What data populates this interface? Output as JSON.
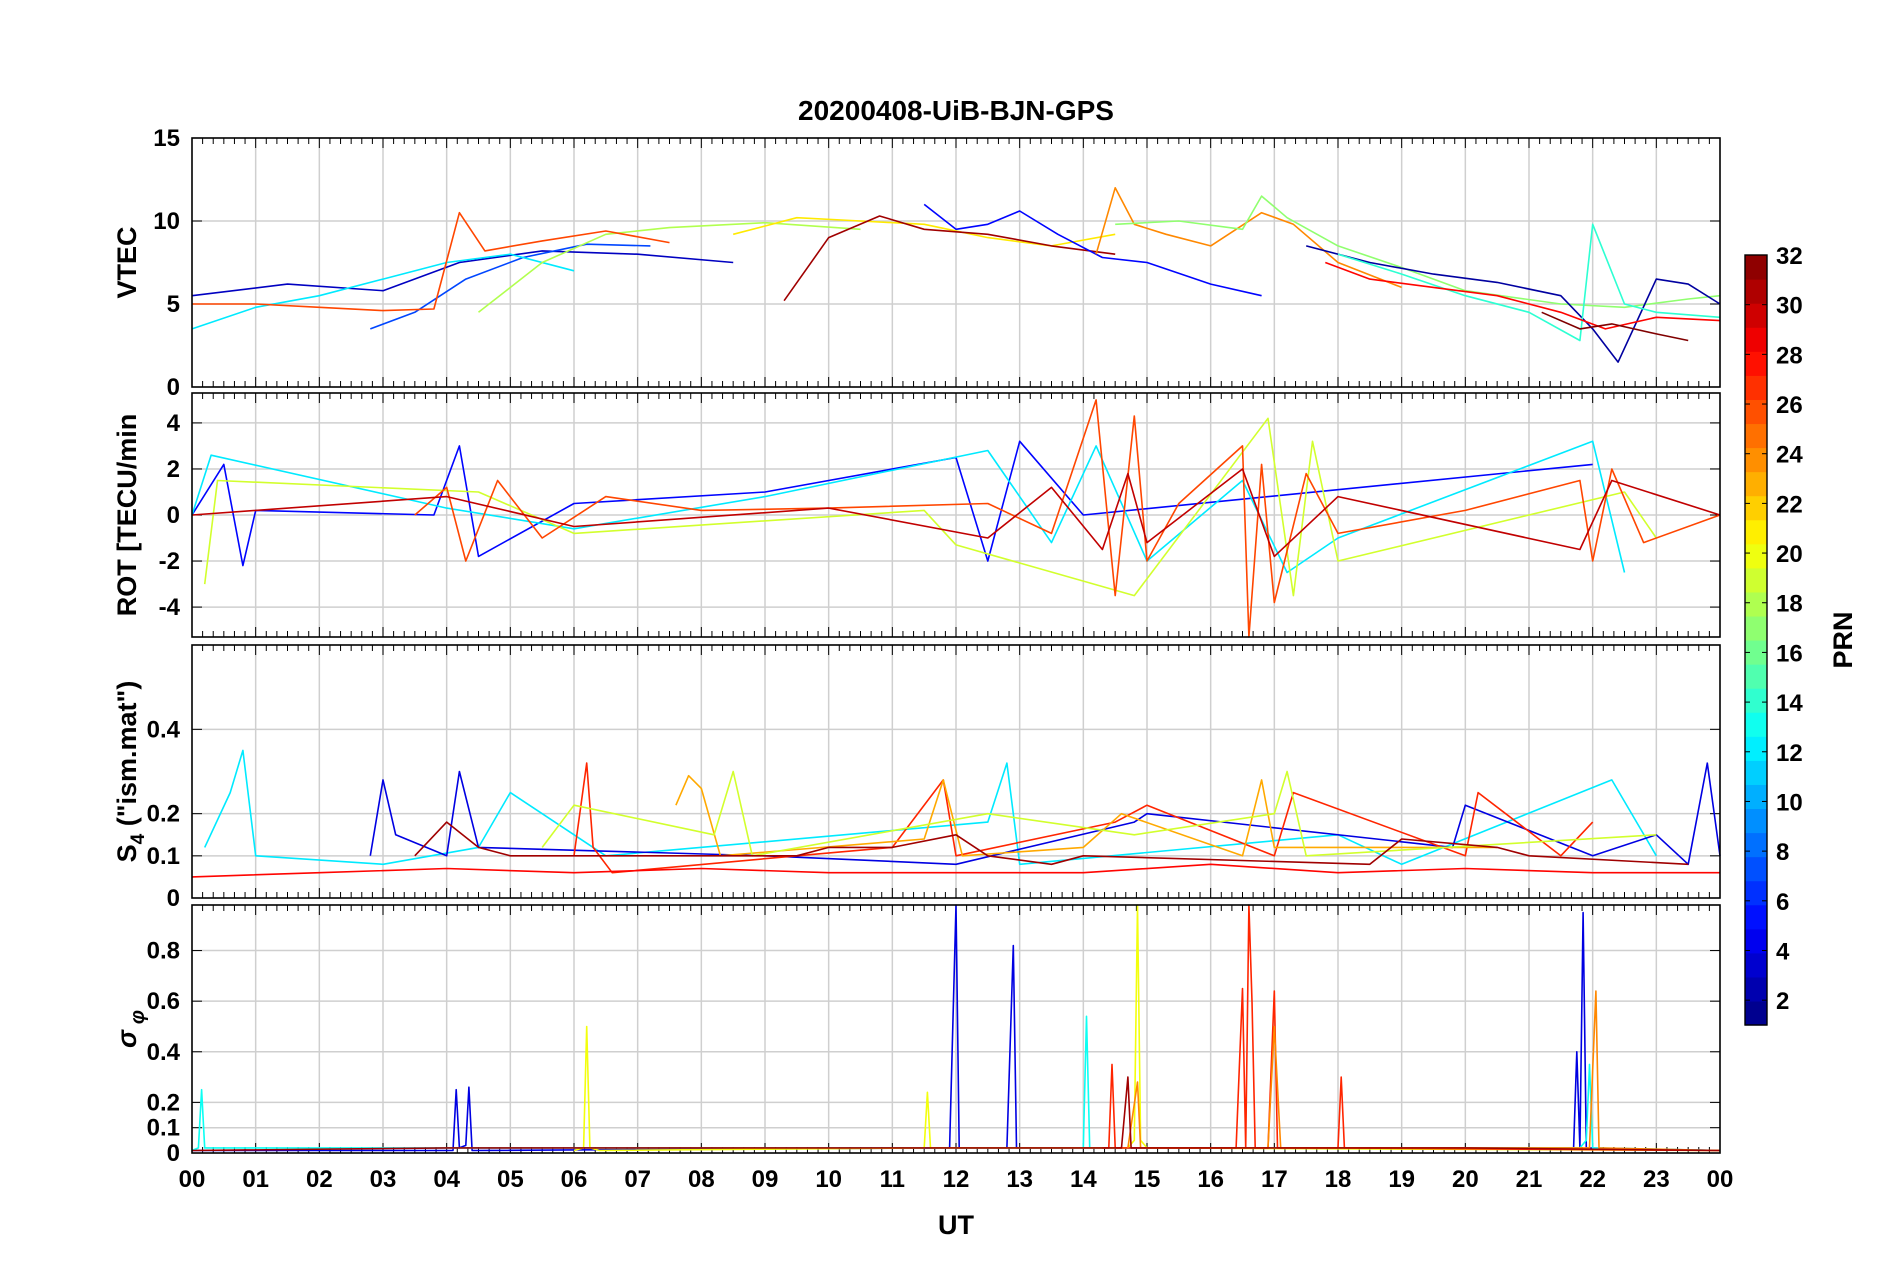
{
  "title": "20200408-UiB-BJN-GPS",
  "xlabel": "UT",
  "x_tick_labels": [
    "00",
    "01",
    "02",
    "03",
    "04",
    "05",
    "06",
    "07",
    "08",
    "09",
    "10",
    "11",
    "12",
    "13",
    "14",
    "15",
    "16",
    "17",
    "18",
    "19",
    "20",
    "21",
    "22",
    "23",
    "00"
  ],
  "colorbar": {
    "label": "PRN",
    "colormap": "jet",
    "range": [
      1,
      32
    ],
    "tick_labels": [
      "2",
      "4",
      "6",
      "8",
      "10",
      "12",
      "14",
      "16",
      "18",
      "20",
      "22",
      "24",
      "26",
      "28",
      "30",
      "32"
    ]
  },
  "chart_data": [
    {
      "type": "line",
      "ylabel": "VTEC",
      "xlim": [
        0,
        24
      ],
      "ylim": [
        0,
        15
      ],
      "ytick_labels": [
        "0",
        "5",
        "10",
        "15"
      ],
      "grid": true,
      "series": [
        {
          "prn": 3,
          "x": [
            0,
            1.5,
            3,
            4.2,
            5.5,
            7,
            8.5
          ],
          "y": [
            5.5,
            6.2,
            5.8,
            7.5,
            8.2,
            8.0,
            7.5
          ]
        },
        {
          "prn": 7,
          "x": [
            2.8,
            3.5,
            4.3,
            5.2,
            6.2,
            7.2
          ],
          "y": [
            3.5,
            4.5,
            6.5,
            7.8,
            8.6,
            8.5
          ]
        },
        {
          "prn": 12,
          "x": [
            0,
            1,
            2,
            3,
            4,
            5,
            6
          ],
          "y": [
            3.5,
            4.8,
            5.5,
            6.5,
            7.5,
            8.0,
            7.0
          ]
        },
        {
          "prn": 18,
          "x": [
            4.5,
            5.5,
            6.5,
            7.5,
            9,
            10.5
          ],
          "y": [
            4.5,
            7.5,
            9.2,
            9.6,
            9.9,
            9.5
          ]
        },
        {
          "prn": 21,
          "x": [
            8.5,
            9.5,
            10.5,
            11.5,
            12.5,
            13.5,
            14.5
          ],
          "y": [
            9.2,
            10.2,
            10.0,
            9.8,
            9.0,
            8.5,
            9.2
          ]
        },
        {
          "prn": 26,
          "x": [
            0,
            1,
            2,
            3,
            3.8,
            4.2,
            4.6,
            5.5,
            6.5,
            7.5
          ],
          "y": [
            5.0,
            5.0,
            4.8,
            4.6,
            4.7,
            10.5,
            8.2,
            8.8,
            9.4,
            8.7
          ]
        },
        {
          "prn": 31,
          "x": [
            9.3,
            10,
            10.8,
            11.5,
            12.5,
            13.5,
            14.5
          ],
          "y": [
            5.2,
            9.0,
            10.3,
            9.5,
            9.2,
            8.5,
            8.0
          ]
        },
        {
          "prn": 5,
          "x": [
            11.5,
            12,
            12.5,
            13,
            13.6,
            14.3,
            15,
            16,
            16.8
          ],
          "y": [
            11.0,
            9.5,
            9.8,
            10.6,
            9.2,
            7.8,
            7.5,
            6.2,
            5.5
          ]
        },
        {
          "prn": 24,
          "x": [
            14.2,
            14.5,
            14.8,
            15.3,
            16,
            16.8,
            17.3,
            18,
            19
          ],
          "y": [
            8.0,
            12.0,
            9.8,
            9.2,
            8.5,
            10.5,
            9.8,
            7.5,
            6.0
          ]
        },
        {
          "prn": 17,
          "x": [
            14.5,
            15.5,
            16.5,
            16.8,
            17.2,
            18,
            19,
            20,
            21.5,
            22.5,
            23.5,
            24
          ],
          "y": [
            9.8,
            10.0,
            9.5,
            11.5,
            10.2,
            8.5,
            7.2,
            5.8,
            5.0,
            4.8,
            5.3,
            5.5
          ]
        },
        {
          "prn": 2,
          "x": [
            17.5,
            18.5,
            19.5,
            20.5,
            21.5,
            22,
            22.4,
            23,
            23.5,
            24
          ],
          "y": [
            8.5,
            7.5,
            6.8,
            6.3,
            5.5,
            3.5,
            1.5,
            6.5,
            6.2,
            5.0
          ]
        },
        {
          "prn": 14,
          "x": [
            18,
            19,
            20,
            21,
            21.8,
            22,
            22.5,
            23,
            24
          ],
          "y": [
            8.0,
            6.8,
            5.5,
            4.5,
            2.8,
            9.8,
            5.0,
            4.5,
            4.2
          ]
        },
        {
          "prn": 28,
          "x": [
            17.8,
            18.5,
            19.5,
            20.5,
            21.5,
            22.2,
            23,
            24
          ],
          "y": [
            7.5,
            6.5,
            6.0,
            5.5,
            4.5,
            3.5,
            4.2,
            4.0
          ]
        },
        {
          "prn": 32,
          "x": [
            21.2,
            21.8,
            22.3,
            23,
            23.5
          ],
          "y": [
            4.5,
            3.5,
            3.8,
            3.2,
            2.8
          ]
        }
      ]
    },
    {
      "type": "line",
      "ylabel": "ROT [TECU/min",
      "xlim": [
        0,
        24
      ],
      "ylim": [
        -5.3,
        5.3
      ],
      "ytick_labels": [
        "-4",
        "-2",
        "0",
        "2",
        "4"
      ],
      "grid": true,
      "series": [
        {
          "prn": 5,
          "x": [
            0,
            0.5,
            0.8,
            1,
            3.8,
            4.2,
            4.5,
            6,
            9,
            12,
            12.5,
            13,
            14,
            22
          ],
          "y": [
            0,
            2.2,
            -2.2,
            0.2,
            0,
            3.0,
            -1.8,
            0.5,
            1.0,
            2.5,
            -2.0,
            3.2,
            0,
            2.2
          ]
        },
        {
          "prn": 12,
          "x": [
            0,
            0.3,
            4,
            6,
            9,
            12.5,
            13.5,
            14.2,
            15,
            16.5,
            17.2,
            18,
            22,
            22.5
          ],
          "y": [
            0,
            2.6,
            0.3,
            -0.6,
            0.8,
            2.8,
            -1.2,
            3.0,
            -2.0,
            1.5,
            -2.5,
            -1.0,
            3.2,
            -2.5
          ]
        },
        {
          "prn": 19,
          "x": [
            0.2,
            0.4,
            4.5,
            6,
            11.5,
            12,
            14.8,
            16.9,
            17.3,
            17.6,
            18,
            22.5,
            23
          ],
          "y": [
            -3.0,
            1.5,
            1.0,
            -0.8,
            0.2,
            -1.3,
            -3.5,
            4.2,
            -3.5,
            3.2,
            -2.0,
            1.0,
            -1.0
          ]
        },
        {
          "prn": 26,
          "x": [
            3.5,
            4,
            4.3,
            4.8,
            5.5,
            6.5,
            8,
            10,
            12.5,
            13.5,
            14.2,
            14.5,
            14.8,
            15,
            15.5,
            16.5,
            16.6,
            16.8,
            17,
            17.5,
            18,
            20,
            21.8,
            22,
            22.3,
            22.8,
            24
          ],
          "y": [
            0,
            1.2,
            -2.0,
            1.5,
            -1.0,
            0.8,
            0.2,
            0.3,
            0.5,
            -0.8,
            5.0,
            -3.5,
            4.3,
            -2.0,
            0.5,
            3.0,
            -5.3,
            2.2,
            -3.8,
            1.8,
            -0.8,
            0.2,
            1.5,
            -2.0,
            2.0,
            -1.2,
            0
          ]
        },
        {
          "prn": 30,
          "x": [
            0,
            4,
            6,
            10,
            12.5,
            13.5,
            14.3,
            14.7,
            15,
            16.5,
            17,
            18,
            21.8,
            22.3,
            24
          ],
          "y": [
            0,
            0.8,
            -0.5,
            0.3,
            -1.0,
            1.2,
            -1.5,
            1.8,
            -1.2,
            2.0,
            -1.8,
            0.8,
            -1.5,
            1.5,
            0
          ]
        }
      ]
    },
    {
      "type": "line",
      "ylabel": "S4 (\"ism.mat\")",
      "xlim": [
        0,
        24
      ],
      "ylim": [
        0,
        0.6
      ],
      "ytick_labels": [
        "0",
        "0.1",
        "0.2",
        "0.4"
      ],
      "grid": true,
      "series": [
        {
          "prn": 12,
          "x": [
            0.2,
            0.6,
            0.8,
            1,
            3,
            4.5,
            5,
            6.5,
            12.5,
            12.8,
            13,
            18,
            19,
            22.3,
            23
          ],
          "y": [
            0.12,
            0.25,
            0.35,
            0.1,
            0.08,
            0.12,
            0.25,
            0.1,
            0.18,
            0.32,
            0.08,
            0.15,
            0.08,
            0.28,
            0.1
          ]
        },
        {
          "prn": 4,
          "x": [
            2.8,
            3,
            3.2,
            4,
            4.2,
            4.5,
            9,
            12,
            14.8,
            15,
            19.8,
            20,
            22,
            23,
            23.5,
            23.8,
            24
          ],
          "y": [
            0.1,
            0.28,
            0.15,
            0.1,
            0.3,
            0.12,
            0.1,
            0.08,
            0.18,
            0.2,
            0.12,
            0.22,
            0.1,
            0.15,
            0.08,
            0.32,
            0.1
          ]
        },
        {
          "prn": 27,
          "x": [
            6,
            6.2,
            6.3,
            6.6,
            9.5,
            11,
            11.8,
            12,
            14.5,
            15,
            17,
            17.3,
            20,
            20.2,
            21.5,
            22
          ],
          "y": [
            0.1,
            0.32,
            0.12,
            0.06,
            0.1,
            0.12,
            0.28,
            0.1,
            0.18,
            0.22,
            0.1,
            0.25,
            0.1,
            0.25,
            0.1,
            0.18
          ]
        },
        {
          "prn": 23,
          "x": [
            7.6,
            7.8,
            8,
            8.3,
            11.5,
            11.8,
            12.1,
            14,
            14.6,
            16.5,
            16.8,
            17,
            20.5
          ],
          "y": [
            0.22,
            0.29,
            0.26,
            0.1,
            0.14,
            0.28,
            0.1,
            0.12,
            0.2,
            0.1,
            0.28,
            0.12,
            0.12
          ]
        },
        {
          "prn": 19,
          "x": [
            5.5,
            6,
            8.2,
            8.5,
            8.8,
            12.5,
            14.8,
            17,
            17.2,
            17.5,
            23
          ],
          "y": [
            0.12,
            0.22,
            0.15,
            0.3,
            0.1,
            0.2,
            0.15,
            0.2,
            0.3,
            0.1,
            0.15
          ]
        },
        {
          "prn": 31,
          "x": [
            3.5,
            4,
            4.5,
            5,
            9.5,
            10,
            11,
            12,
            12.5,
            13.5,
            14,
            18.5,
            19,
            20.5,
            21,
            23.5
          ],
          "y": [
            0.1,
            0.18,
            0.12,
            0.1,
            0.1,
            0.12,
            0.12,
            0.15,
            0.1,
            0.08,
            0.1,
            0.08,
            0.14,
            0.12,
            0.1,
            0.08
          ]
        },
        {
          "prn": 28,
          "x": [
            0,
            2,
            4,
            6,
            8,
            10,
            12,
            14,
            16,
            18,
            20,
            22,
            24
          ],
          "y": [
            0.05,
            0.06,
            0.07,
            0.06,
            0.07,
            0.06,
            0.06,
            0.06,
            0.08,
            0.06,
            0.07,
            0.06,
            0.06
          ]
        }
      ]
    },
    {
      "type": "line",
      "ylabel": "σ φ",
      "xlim": [
        0,
        24
      ],
      "ylim": [
        0,
        0.98
      ],
      "ytick_labels": [
        "0",
        "0.1",
        "0.2",
        "0.4",
        "0.6",
        "0.8"
      ],
      "grid": true,
      "series": [
        {
          "prn": 4,
          "x": [
            0,
            4.1,
            4.15,
            4.2,
            4.3,
            4.35,
            4.4,
            11.9,
            12,
            12.05,
            12.1,
            12.8,
            12.9,
            12.95,
            13,
            21.7,
            21.75,
            21.8,
            21.85,
            21.9,
            24
          ],
          "y": [
            0.01,
            0.01,
            0.25,
            0.02,
            0.03,
            0.26,
            0.01,
            0.02,
            0.98,
            0.02,
            0.02,
            0.02,
            0.82,
            0.02,
            0.02,
            0.02,
            0.4,
            0.02,
            0.95,
            0.02,
            0.01
          ]
        },
        {
          "prn": 13,
          "x": [
            0,
            0.1,
            0.15,
            0.2,
            14,
            14.05,
            14.1,
            14.2,
            21.8,
            21.9,
            21.95,
            22,
            24
          ],
          "y": [
            0.01,
            0.02,
            0.25,
            0.02,
            0.02,
            0.54,
            0.02,
            0.02,
            0.02,
            0.05,
            0.35,
            0.02,
            0.01
          ]
        },
        {
          "prn": 20,
          "x": [
            6,
            6.15,
            6.2,
            6.25,
            6.4,
            11.5,
            11.55,
            11.6,
            14.7,
            14.8,
            14.85,
            14.9,
            15,
            24
          ],
          "y": [
            0.01,
            0.02,
            0.5,
            0.02,
            0.01,
            0.02,
            0.24,
            0.02,
            0.02,
            0.05,
            0.98,
            0.05,
            0.02,
            0.01
          ]
        },
        {
          "prn": 27,
          "x": [
            14.3,
            14.4,
            14.45,
            14.5,
            14.6,
            16.4,
            16.5,
            16.55,
            16.6,
            16.65,
            16.7,
            16.9,
            17,
            17.05,
            17.1,
            18,
            18.05,
            18.1,
            24
          ],
          "y": [
            0.02,
            0.02,
            0.35,
            0.02,
            0.02,
            0.02,
            0.65,
            0.02,
            0.98,
            0.6,
            0.02,
            0.02,
            0.64,
            0.02,
            0.02,
            0.02,
            0.3,
            0.02,
            0.01
          ]
        },
        {
          "prn": 24,
          "x": [
            14.7,
            14.85,
            14.9,
            16.9,
            17,
            17.1,
            21.95,
            22.05,
            22.1,
            24
          ],
          "y": [
            0.02,
            0.28,
            0.02,
            0.02,
            0.5,
            0.02,
            0.02,
            0.64,
            0.02,
            0.01
          ]
        },
        {
          "prn": 31,
          "x": [
            0,
            4,
            8,
            12,
            14.6,
            14.7,
            14.75,
            16,
            20,
            24
          ],
          "y": [
            0.01,
            0.02,
            0.02,
            0.02,
            0.02,
            0.3,
            0.02,
            0.02,
            0.02,
            0.01
          ]
        }
      ]
    }
  ]
}
